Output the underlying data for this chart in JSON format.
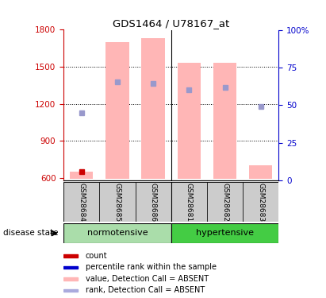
{
  "title": "GDS1464 / U78167_at",
  "samples": [
    "GSM28684",
    "GSM28685",
    "GSM28686",
    "GSM28681",
    "GSM28682",
    "GSM28683"
  ],
  "ylim_left": [
    580,
    1800
  ],
  "ylim_right": [
    0,
    100
  ],
  "yticks_left": [
    600,
    900,
    1200,
    1500,
    1800
  ],
  "yticks_right": [
    0,
    25,
    50,
    75,
    100
  ],
  "bar_values": [
    650,
    1700,
    1730,
    1530,
    1530,
    700
  ],
  "bar_bottom": 590,
  "bar_color": "#ffb6b6",
  "bar_width": 0.65,
  "blue_square_y": [
    1130,
    1375,
    1365,
    1315,
    1330,
    1180
  ],
  "red_square_y": [
    648,
    null,
    null,
    null,
    null,
    null
  ],
  "left_axis_color": "#cc0000",
  "right_axis_color": "#0000cc",
  "sample_box_color": "#cccccc",
  "normotensive_color": "#aaddaa",
  "hypertensive_color": "#44cc44",
  "legend_colors": [
    "#cc0000",
    "#0000cc",
    "#ffb6b6",
    "#aaaadd"
  ],
  "legend_labels": [
    "count",
    "percentile rank within the sample",
    "value, Detection Call = ABSENT",
    "rank, Detection Call = ABSENT"
  ]
}
